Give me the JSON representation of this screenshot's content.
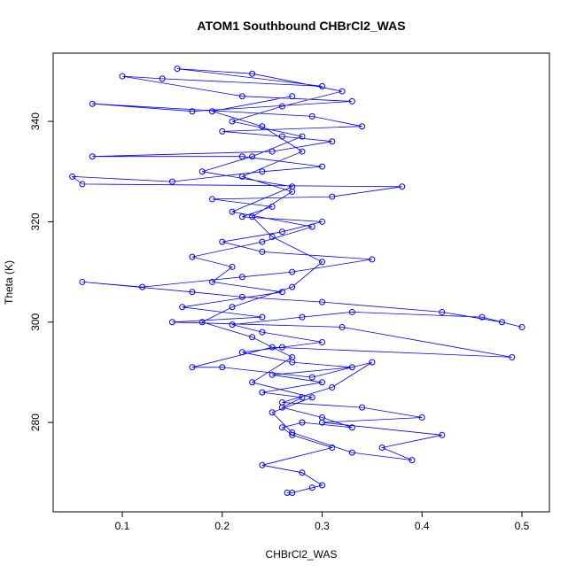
{
  "chart_data": {
    "type": "line",
    "title": "ATOM1 Southbound CHBrCl2_WAS",
    "x_label": "CHBrCl2_WAS",
    "y_label": "Theta (K)",
    "color": "#0000ff",
    "x": [
      0.265,
      0.27,
      0.29,
      0.3,
      0.28,
      0.24,
      0.31,
      0.27,
      0.26,
      0.28,
      0.33,
      0.3,
      0.26,
      0.28,
      0.24,
      0.3,
      0.25,
      0.33,
      0.27,
      0.22,
      0.26,
      0.3,
      0.24,
      0.21,
      0.28,
      0.33,
      0.46,
      0.5,
      0.48,
      0.42,
      0.3,
      0.22,
      0.17,
      0.06,
      0.12,
      0.22,
      0.27,
      0.35,
      0.24,
      0.2,
      0.26,
      0.3,
      0.22,
      0.25,
      0.19,
      0.31,
      0.38,
      0.06,
      0.05,
      0.15,
      0.24,
      0.3,
      0.22,
      0.07,
      0.25,
      0.31,
      0.26,
      0.2,
      0.34,
      0.29,
      0.07,
      0.17,
      0.33,
      0.22,
      0.1,
      0.14,
      0.3,
      0.155,
      0.23,
      0.32,
      0.26,
      0.21,
      0.28,
      0.23,
      0.18,
      0.27,
      0.21,
      0.29,
      0.24,
      0.17,
      0.21,
      0.19,
      0.26,
      0.16,
      0.24,
      0.15,
      0.32,
      0.49,
      0.25,
      0.17,
      0.2,
      0.29,
      0.35,
      0.31,
      0.26,
      0.34,
      0.4,
      0.3,
      0.42,
      0.36,
      0.39,
      0.33,
      0.27,
      0.25,
      0.29,
      0.23,
      0.27,
      0.23,
      0.18,
      0.21,
      0.27,
      0.3,
      0.25,
      0.23,
      0.27,
      0.22,
      0.28,
      0.24,
      0.19,
      0.27
    ],
    "values": [
      266,
      266,
      267,
      267.5,
      270,
      271.5,
      275,
      277.5,
      279,
      280,
      279,
      281,
      283,
      285,
      286,
      288,
      289.5,
      291,
      292,
      294,
      295,
      296,
      298,
      299.5,
      301,
      302,
      301,
      299,
      300,
      302,
      304,
      305,
      306,
      308,
      307,
      309,
      310,
      312.5,
      314,
      316,
      318,
      320,
      321,
      323,
      324.5,
      325,
      327,
      327.5,
      329,
      328,
      330,
      331,
      333,
      333,
      334,
      336,
      337,
      338,
      339,
      341,
      343.5,
      342,
      344,
      345,
      349,
      348.5,
      347,
      350.5,
      349.5,
      346,
      343,
      340,
      337,
      333,
      330,
      327,
      322,
      319,
      316,
      313,
      311,
      308,
      306,
      303,
      301,
      300,
      299,
      293,
      295,
      291,
      291,
      289,
      292,
      287,
      284,
      283,
      281,
      280,
      277.5,
      275,
      272.5,
      274,
      278,
      282,
      285,
      288,
      293,
      297,
      300,
      303,
      307,
      312,
      317,
      321,
      326,
      329,
      334,
      339,
      342,
      345
    ],
    "xlim": [
      0.0308,
      0.5275
    ],
    "ylim": [
      262.2,
      353.6
    ],
    "xticks": [
      0.1,
      0.2,
      0.3,
      0.4,
      0.5
    ],
    "yticks": [
      280,
      300,
      320,
      340
    ]
  }
}
